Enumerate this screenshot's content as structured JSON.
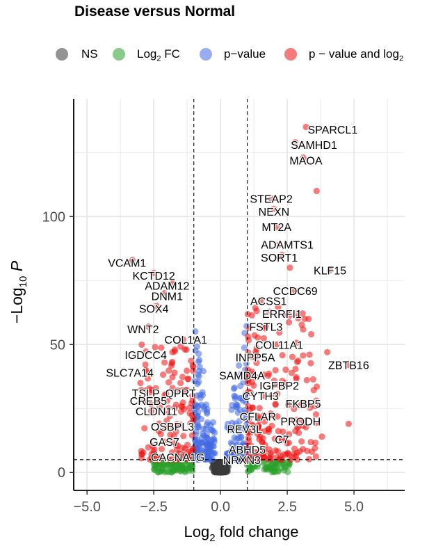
{
  "chart_data": {
    "type": "scatter",
    "title": "Disease versus Normal",
    "xlabel": "Log2 fold change",
    "ylabel": "-Log10 P",
    "xlim": [
      -5.5,
      6.9
    ],
    "ylim": [
      -7,
      146
    ],
    "xticks": [
      -5.0,
      -2.5,
      0.0,
      2.5,
      5.0
    ],
    "xtick_labels": [
      "−5.0",
      "−2.5",
      "0.0",
      "2.5",
      "5.0"
    ],
    "yticks": [
      0,
      50,
      100
    ],
    "ytick_labels": [
      "0",
      "50",
      "100"
    ],
    "fc_cutoff": 1,
    "p_cutoff": 5,
    "colors": {
      "NS": "#3a3a3a",
      "Log2 FC": "#2aa02a",
      "p-value": "#4169e1",
      "p-value and log2": "#ee1111"
    },
    "legend": [
      {
        "key": "NS",
        "label": "NS"
      },
      {
        "key": "Log2 FC",
        "label": "Log",
        "sub": "2",
        "suffix": " FC"
      },
      {
        "key": "p-value",
        "label": "p−value"
      },
      {
        "key": "p-value and log2",
        "label": "p − value and log",
        "sub": "2"
      }
    ],
    "labeled_genes": [
      {
        "gene": "SPARCL1",
        "x": 3.2,
        "y": 135,
        "lx": 4.2,
        "ly": 134
      },
      {
        "gene": "SAMHD1",
        "x": 2.8,
        "y": 129,
        "lx": 3.5,
        "ly": 128
      },
      {
        "gene": "MAOA",
        "x": 3.1,
        "y": 123,
        "lx": 3.2,
        "ly": 122
      },
      {
        "gene": "STEAP2",
        "x": 1.9,
        "y": 107,
        "lx": 1.9,
        "ly": 107
      },
      {
        "gene": "NEXN",
        "x": 2.0,
        "y": 103,
        "lx": 2.0,
        "ly": 102
      },
      {
        "gene": "MT2A",
        "x": 2.1,
        "y": 96,
        "lx": 2.1,
        "ly": 96
      },
      {
        "gene": "ADAMTS1",
        "x": 2.2,
        "y": 89,
        "lx": 2.5,
        "ly": 89
      },
      {
        "gene": "SORT1",
        "x": 2.3,
        "y": 85,
        "lx": 2.2,
        "ly": 84
      },
      {
        "gene": "KLF15",
        "x": 4.1,
        "y": 79,
        "lx": 4.1,
        "ly": 79
      },
      {
        "gene": "VCAM1",
        "x": -3.3,
        "y": 83,
        "lx": -3.5,
        "ly": 82
      },
      {
        "gene": "KCTD12",
        "x": -2.5,
        "y": 78,
        "lx": -2.5,
        "ly": 77
      },
      {
        "gene": "ADAM12",
        "x": -1.8,
        "y": 74,
        "lx": -2.0,
        "ly": 73
      },
      {
        "gene": "DNM1",
        "x": -2.1,
        "y": 70,
        "lx": -2.0,
        "ly": 69
      },
      {
        "gene": "SOX4",
        "x": -2.4,
        "y": 65,
        "lx": -2.5,
        "ly": 64
      },
      {
        "gene": "CCDC69",
        "x": 2.8,
        "y": 71,
        "lx": 2.8,
        "ly": 71
      },
      {
        "gene": "ACSS1",
        "x": 1.5,
        "y": 67,
        "lx": 1.8,
        "ly": 67
      },
      {
        "gene": "ERRFI1",
        "x": 2.5,
        "y": 62,
        "lx": 2.3,
        "ly": 62
      },
      {
        "gene": "FSTL3",
        "x": 1.7,
        "y": 57,
        "lx": 1.7,
        "ly": 57
      },
      {
        "gene": "WNT2",
        "x": -2.7,
        "y": 57,
        "lx": -2.9,
        "ly": 56
      },
      {
        "gene": "COL1A1",
        "x": -1.4,
        "y": 52,
        "lx": -1.3,
        "ly": 52
      },
      {
        "gene": "COL11A1",
        "x": 2.1,
        "y": 50,
        "lx": 2.2,
        "ly": 50
      },
      {
        "gene": "IGDCC4",
        "x": -1.8,
        "y": 47,
        "lx": -2.8,
        "ly": 46
      },
      {
        "gene": "INPP5A",
        "x": 1.3,
        "y": 45,
        "lx": 1.3,
        "ly": 45
      },
      {
        "gene": "ZBTB16",
        "x": 4.8,
        "y": 42,
        "lx": 4.8,
        "ly": 42
      },
      {
        "gene": "SLC7A14",
        "x": -2.8,
        "y": 40,
        "lx": -3.4,
        "ly": 39
      },
      {
        "gene": "SAMD4A",
        "x": 0.8,
        "y": 38,
        "lx": 0.8,
        "ly": 38
      },
      {
        "gene": "IGFBP2",
        "x": 2.2,
        "y": 34,
        "lx": 2.2,
        "ly": 34
      },
      {
        "gene": "TSLP",
        "x": -2.8,
        "y": 32,
        "lx": -2.8,
        "ly": 31
      },
      {
        "gene": "QPRT",
        "x": -1.6,
        "y": 32,
        "lx": -1.5,
        "ly": 31
      },
      {
        "gene": "CYTH3",
        "x": 1.6,
        "y": 30,
        "lx": 1.5,
        "ly": 30
      },
      {
        "gene": "CREB5",
        "x": -2.0,
        "y": 28,
        "lx": -2.7,
        "ly": 28
      },
      {
        "gene": "FKBP5",
        "x": 3.2,
        "y": 27,
        "lx": 3.1,
        "ly": 27
      },
      {
        "gene": "CLDN11",
        "x": -2.0,
        "y": 24,
        "lx": -2.4,
        "ly": 24
      },
      {
        "gene": "CFLAR",
        "x": 1.4,
        "y": 22,
        "lx": 1.4,
        "ly": 22
      },
      {
        "gene": "PRODH",
        "x": 3.1,
        "y": 20,
        "lx": 3.0,
        "ly": 20
      },
      {
        "gene": "OSBPL3",
        "x": -1.8,
        "y": 18,
        "lx": -1.8,
        "ly": 18
      },
      {
        "gene": "REV3L",
        "x": 0.9,
        "y": 17,
        "lx": 0.9,
        "ly": 17
      },
      {
        "gene": "GAS7",
        "x": -2.1,
        "y": 12,
        "lx": -2.1,
        "ly": 12
      },
      {
        "gene": "C7",
        "x": 2.3,
        "y": 13,
        "lx": 2.3,
        "ly": 13
      },
      {
        "gene": "ABHD5",
        "x": 1.0,
        "y": 9,
        "lx": 1.0,
        "ly": 9
      },
      {
        "gene": "CACNA1G",
        "x": -1.6,
        "y": 6,
        "lx": -1.6,
        "ly": 6
      },
      {
        "gene": "NRXN3",
        "x": 0.8,
        "y": 5,
        "lx": 0.8,
        "ly": 5
      }
    ]
  }
}
